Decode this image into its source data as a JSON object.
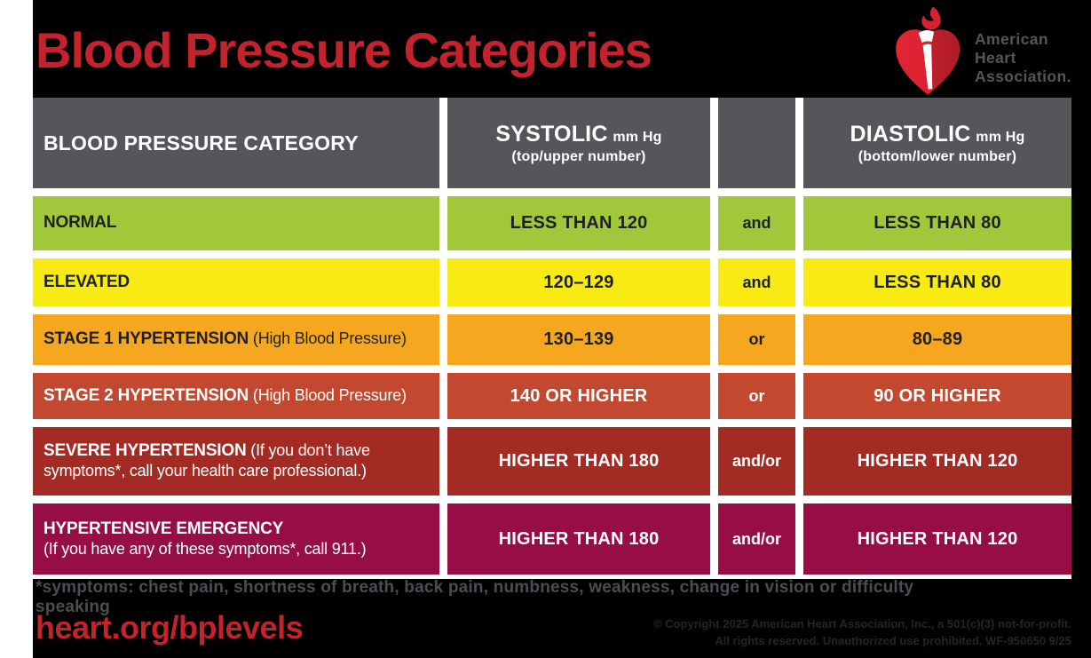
{
  "title": "Blood Pressure Categories",
  "logo": {
    "line1": "American",
    "line2": "Heart",
    "line3": "Association."
  },
  "colors": {
    "brand_red": "#C4232E",
    "header_gray": "#54565A",
    "background": "#000000",
    "gutter_white": "#FFFFFF",
    "normal_green": "#A1C83B",
    "elevated_yellow": "#F7EB13",
    "stage1_orange": "#F5A81F",
    "stage2_red_orange": "#C2492F",
    "severe_dark_red": "#A32B24",
    "emergency_maroon": "#970E47",
    "dark_text": "#1F2023",
    "footnote_gray": "#4A4D52",
    "copyright_gray": "#232528"
  },
  "table": {
    "header": {
      "category": "BLOOD PRESSURE CATEGORY",
      "systolic_main": "SYSTOLIC",
      "systolic_unit": "mm Hg",
      "systolic_sub": "(top/upper number)",
      "diastolic_main": "DIASTOLIC",
      "diastolic_unit": "mm Hg",
      "diastolic_sub": "(bottom/lower number)"
    },
    "rows": [
      {
        "name": "normal",
        "label": "NORMAL",
        "note": "",
        "note_block": false,
        "systolic": "LESS THAN 120",
        "connector": "and",
        "diastolic": "LESS THAN 80",
        "bg": "#A1C83B",
        "fg": "#1F2023"
      },
      {
        "name": "elevated",
        "label": "ELEVATED",
        "note": "",
        "note_block": false,
        "systolic": "120–129",
        "connector": "and",
        "diastolic": "LESS THAN 80",
        "bg": "#F7EB13",
        "fg": "#1F2023"
      },
      {
        "name": "stage-1-hypertension",
        "label": "STAGE 1 HYPERTENSION",
        "note": "(High Blood Pressure)",
        "note_block": false,
        "systolic": "130–139",
        "connector": "or",
        "diastolic": "80–89",
        "bg": "#F5A81F",
        "fg": "#1F2023"
      },
      {
        "name": "stage-2-hypertension",
        "label": "STAGE 2 HYPERTENSION",
        "note": "(High Blood Pressure)",
        "note_block": false,
        "systolic": "140 OR HIGHER",
        "connector": "or",
        "diastolic": "90 OR HIGHER",
        "bg": "#C2492F",
        "fg": "#FFFFFF"
      },
      {
        "name": "severe-hypertension",
        "label": "SEVERE HYPERTENSION",
        "note": "(If you don’t have symptoms*, call your health care professional.)",
        "note_block": false,
        "systolic": "HIGHER THAN 180",
        "connector": "and/or",
        "diastolic": "HIGHER THAN 120",
        "bg": "#A32B24",
        "fg": "#FFFFFF"
      },
      {
        "name": "hypertensive-emergency",
        "label": "HYPERTENSIVE EMERGENCY",
        "note": "(If you have any of these symptoms*, call 911.)",
        "note_block": true,
        "systolic": "HIGHER THAN 180",
        "connector": "and/or",
        "diastolic": "HIGHER THAN 120",
        "bg": "#970E47",
        "fg": "#FFFFFF"
      }
    ]
  },
  "footer": {
    "symptoms": "*symptoms: chest pain, shortness of breath, back pain, numbness, weakness, change in vision or difficulty speaking",
    "url": "heart.org/bplevels",
    "copyright_line1": "© Copyright 2025 American Heart Association, Inc., a 501(c)(3) not-for-profit.",
    "copyright_line2": "All rights reserved. Unauthorized use prohibited.  WF-950650  9/25"
  },
  "chart_data": {
    "type": "table",
    "title": "Blood Pressure Categories",
    "columns": [
      "BLOOD PRESSURE CATEGORY",
      "SYSTOLIC mm Hg (top/upper number)",
      "",
      "DIASTOLIC mm Hg (bottom/lower number)"
    ],
    "rows": [
      [
        "NORMAL",
        "LESS THAN 120",
        "and",
        "LESS THAN 80"
      ],
      [
        "ELEVATED",
        "120–129",
        "and",
        "LESS THAN 80"
      ],
      [
        "STAGE 1 HYPERTENSION (High Blood Pressure)",
        "130–139",
        "or",
        "80–89"
      ],
      [
        "STAGE 2 HYPERTENSION (High Blood Pressure)",
        "140 OR HIGHER",
        "or",
        "90 OR HIGHER"
      ],
      [
        "SEVERE HYPERTENSION (If you don’t have symptoms*, call your health care professional.)",
        "HIGHER THAN 180",
        "and/or",
        "HIGHER THAN 120"
      ],
      [
        "HYPERTENSIVE EMERGENCY (If you have any of these symptoms*, call 911.)",
        "HIGHER THAN 180",
        "and/or",
        "HIGHER THAN 120"
      ]
    ]
  }
}
